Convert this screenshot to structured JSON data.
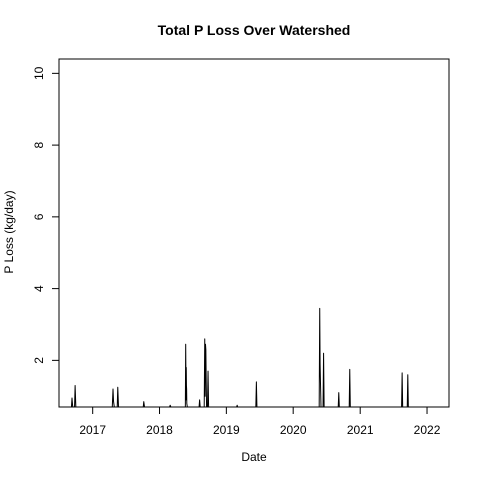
{
  "chart_data": {
    "type": "line",
    "title": "Total P Loss Over Watershed",
    "xlabel": "Date",
    "ylabel": "P Loss (kg/day)",
    "xlim": [
      "2016-07-01",
      "2022-05-01"
    ],
    "ylim": [
      0.7,
      10.4
    ],
    "x_ticks": [
      "2017-01-01",
      "2018-01-01",
      "2019-01-01",
      "2020-01-01",
      "2021-01-01",
      "2022-01-01"
    ],
    "x_tick_labels": [
      "2017",
      "2018",
      "2019",
      "2020",
      "2021",
      "2022"
    ],
    "y_ticks": [
      2,
      4,
      6,
      8,
      10
    ],
    "y_tick_labels": [
      "2",
      "4",
      "6",
      "8",
      "10"
    ],
    "grid": false,
    "series": [
      {
        "color": "#000000",
        "x": [
          "2016-07-01",
          "2016-09-07",
          "2016-09-10",
          "2016-09-14",
          "2016-09-24",
          "2016-09-27",
          "2016-10-01",
          "2017-04-18",
          "2017-04-22",
          "2017-04-25",
          "2017-04-29",
          "2017-05-15",
          "2017-05-18",
          "2017-05-22",
          "2017-10-04",
          "2017-10-07",
          "2017-10-11",
          "2018-02-25",
          "2018-02-28",
          "2018-03-04",
          "2018-05-22",
          "2018-05-24",
          "2018-05-26",
          "2018-05-27",
          "2018-05-28",
          "2018-05-29",
          "2018-05-30",
          "2018-06-02",
          "2018-08-05",
          "2018-08-08",
          "2018-08-11",
          "2018-09-02",
          "2018-09-05",
          "2018-09-07",
          "2018-09-09",
          "2018-09-11",
          "2018-09-13",
          "2018-09-15",
          "2018-09-20",
          "2018-09-23",
          "2018-09-26",
          "2019-02-26",
          "2019-03-01",
          "2019-03-04",
          "2019-06-11",
          "2019-06-14",
          "2019-06-17",
          "2020-05-22",
          "2020-05-25",
          "2020-05-27",
          "2020-05-29",
          "2020-06-01",
          "2020-06-12",
          "2020-06-15",
          "2020-06-18",
          "2020-09-03",
          "2020-09-06",
          "2020-09-09",
          "2020-11-02",
          "2020-11-05",
          "2020-11-08",
          "2021-08-15",
          "2021-08-18",
          "2021-08-21",
          "2021-09-15",
          "2021-09-18",
          "2021-09-21",
          "2022-01-31"
        ],
        "y": [
          0.7,
          0.7,
          0.95,
          0.7,
          0.7,
          1.3,
          0.7,
          0.7,
          1.2,
          0.85,
          0.7,
          0.7,
          1.25,
          0.7,
          0.7,
          0.85,
          0.7,
          0.7,
          0.75,
          0.7,
          0.7,
          2.45,
          0.9,
          1.8,
          1.3,
          1.2,
          0.8,
          0.7,
          0.7,
          0.9,
          0.7,
          0.7,
          2.6,
          1.0,
          2.45,
          2.3,
          1.4,
          0.7,
          0.7,
          1.7,
          0.7,
          0.7,
          0.75,
          0.7,
          0.7,
          1.4,
          0.7,
          0.7,
          3.45,
          1.9,
          1.4,
          0.7,
          0.7,
          2.2,
          0.7,
          0.7,
          1.1,
          0.7,
          0.7,
          1.75,
          0.7,
          0.7,
          1.65,
          0.7,
          0.7,
          1.6,
          0.7,
          0.7
        ]
      }
    ]
  }
}
